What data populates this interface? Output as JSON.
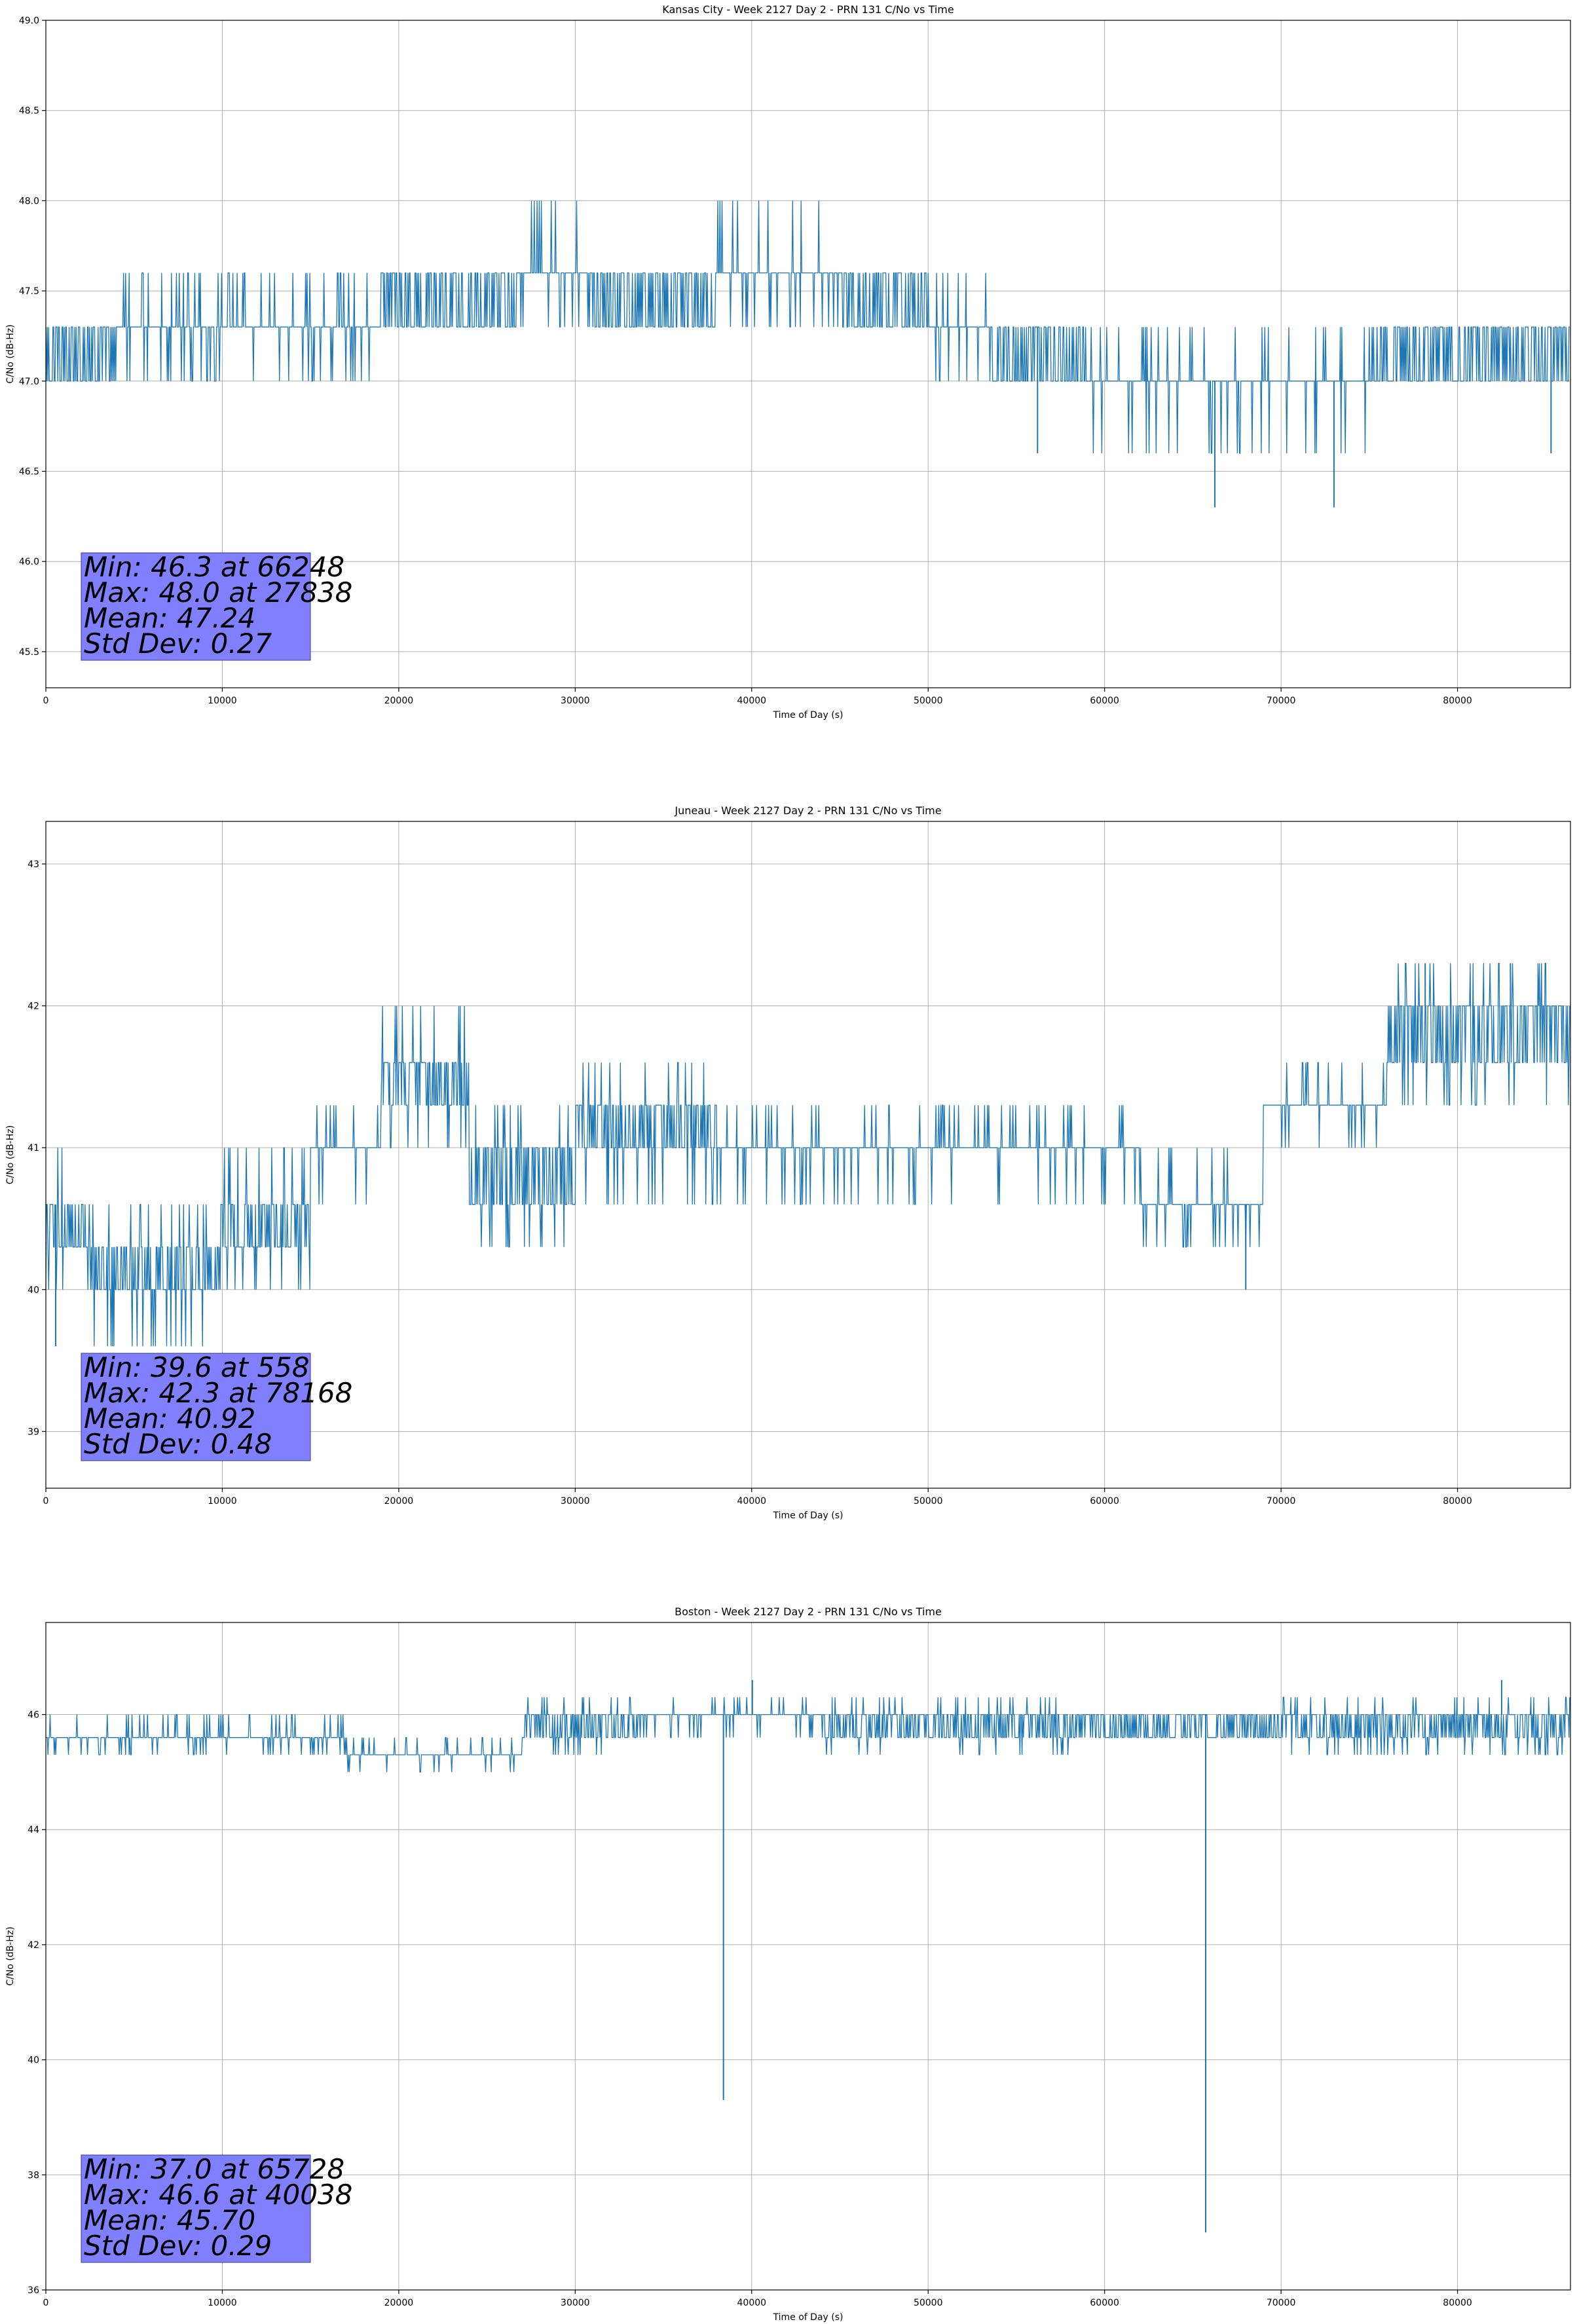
{
  "chart_data": [
    {
      "type": "line",
      "title": "Kansas City - Week 2127 Day 2 - PRN 131 C/No vs Time",
      "xlabel": "Time of Day (s)",
      "ylabel": "C/No (dB-Hz)",
      "xlim": [
        0,
        86400
      ],
      "ylim": [
        45.3,
        49.0
      ],
      "x_ticks": [
        0,
        10000,
        20000,
        30000,
        40000,
        50000,
        60000,
        70000,
        80000
      ],
      "x_tick_labels": [
        "0",
        "10000",
        "20000",
        "30000",
        "40000",
        "50000",
        "60000",
        "70000",
        "80000"
      ],
      "y_ticks": [
        45.5,
        46.0,
        46.5,
        47.0,
        47.5,
        48.0,
        48.5,
        49.0
      ],
      "y_tick_labels": [
        "45.5",
        "46.0",
        "46.5",
        "47.0",
        "47.5",
        "48.0",
        "48.5",
        "49.0"
      ],
      "grid": true,
      "color": "#1f77b4",
      "levels": [
        46.3,
        46.6,
        47.0,
        47.3,
        47.6,
        48.0
      ],
      "segments": [
        {
          "x0": 0,
          "x1": 4000,
          "levels": [
            47.0,
            47.3
          ]
        },
        {
          "x0": 4000,
          "x1": 8000,
          "levels": [
            47.0,
            47.3,
            47.6
          ]
        },
        {
          "x0": 8000,
          "x1": 11000,
          "levels": [
            47.0,
            47.3,
            47.6
          ]
        },
        {
          "x0": 11000,
          "x1": 19000,
          "levels": [
            47.0,
            47.3,
            47.6
          ]
        },
        {
          "x0": 19000,
          "x1": 27000,
          "levels": [
            47.3,
            47.6
          ]
        },
        {
          "x0": 27000,
          "x1": 31000,
          "levels": [
            47.3,
            47.6,
            48.0
          ]
        },
        {
          "x0": 31000,
          "x1": 38000,
          "levels": [
            47.3,
            47.6
          ]
        },
        {
          "x0": 38000,
          "x1": 45000,
          "levels": [
            47.3,
            47.6,
            48.0
          ]
        },
        {
          "x0": 45000,
          "x1": 50000,
          "levels": [
            47.3,
            47.6
          ]
        },
        {
          "x0": 50000,
          "x1": 53500,
          "levels": [
            47.0,
            47.3,
            47.6
          ]
        },
        {
          "x0": 53500,
          "x1": 59000,
          "levels": [
            47.0,
            47.3
          ]
        },
        {
          "x0": 59000,
          "x1": 69000,
          "levels": [
            46.6,
            47.0,
            47.3
          ]
        },
        {
          "x0": 69000,
          "x1": 75000,
          "levels": [
            46.6,
            47.0,
            47.3
          ]
        },
        {
          "x0": 75000,
          "x1": 86400,
          "levels": [
            47.0,
            47.3
          ]
        }
      ],
      "spikes": [
        {
          "x": 66248,
          "y": 46.3
        },
        {
          "x": 73000,
          "y": 46.3
        },
        {
          "x": 56200,
          "y": 46.6
        },
        {
          "x": 85300,
          "y": 46.6
        }
      ],
      "stats": {
        "min_line": "Min: 46.3 at 66248",
        "max_line": "Max: 48.0 at 27838",
        "mean_line": "Mean: 47.24",
        "std_line": "Std Dev: 0.27"
      }
    },
    {
      "type": "line",
      "title": "Juneau - Week 2127 Day 2 - PRN 131 C/No vs Time",
      "xlabel": "Time of Day (s)",
      "ylabel": "C/No (dB-Hz)",
      "xlim": [
        0,
        86400
      ],
      "ylim": [
        38.6,
        43.3
      ],
      "x_ticks": [
        0,
        10000,
        20000,
        30000,
        40000,
        50000,
        60000,
        70000,
        80000
      ],
      "x_tick_labels": [
        "0",
        "10000",
        "20000",
        "30000",
        "40000",
        "50000",
        "60000",
        "70000",
        "80000"
      ],
      "y_ticks": [
        39,
        40,
        41,
        42,
        43
      ],
      "y_tick_labels": [
        "39",
        "40",
        "41",
        "42",
        "43"
      ],
      "grid": true,
      "color": "#1f77b4",
      "levels": [
        39.6,
        40.0,
        40.3,
        40.6,
        41.0,
        41.3,
        41.6,
        42.0,
        42.3
      ],
      "segments": [
        {
          "x0": 0,
          "x1": 2500,
          "levels": [
            40.0,
            40.3,
            40.6,
            41.0
          ]
        },
        {
          "x0": 2500,
          "x1": 10000,
          "levels": [
            39.6,
            40.0,
            40.3,
            40.6
          ]
        },
        {
          "x0": 10000,
          "x1": 15000,
          "levels": [
            40.0,
            40.3,
            40.6,
            41.0
          ]
        },
        {
          "x0": 15000,
          "x1": 19000,
          "levels": [
            40.6,
            41.0,
            41.3
          ]
        },
        {
          "x0": 19000,
          "x1": 24000,
          "levels": [
            41.0,
            41.3,
            41.6,
            42.0
          ]
        },
        {
          "x0": 24000,
          "x1": 30000,
          "levels": [
            40.3,
            40.6,
            41.0,
            41.3
          ]
        },
        {
          "x0": 30000,
          "x1": 38000,
          "levels": [
            40.6,
            41.0,
            41.3,
            41.6
          ]
        },
        {
          "x0": 38000,
          "x1": 52000,
          "levels": [
            40.6,
            41.0,
            41.3
          ]
        },
        {
          "x0": 52000,
          "x1": 62000,
          "levels": [
            40.6,
            41.0,
            41.3
          ]
        },
        {
          "x0": 62000,
          "x1": 69000,
          "levels": [
            40.3,
            40.6,
            41.0
          ]
        },
        {
          "x0": 69000,
          "x1": 76000,
          "levels": [
            41.0,
            41.3,
            41.6
          ]
        },
        {
          "x0": 76000,
          "x1": 86400,
          "levels": [
            41.3,
            41.6,
            42.0,
            42.3
          ]
        }
      ],
      "spikes": [
        {
          "x": 558,
          "y": 39.6
        },
        {
          "x": 68000,
          "y": 40.0
        },
        {
          "x": 78168,
          "y": 42.3
        },
        {
          "x": 83000,
          "y": 42.3
        }
      ],
      "stats": {
        "min_line": "Min: 39.6 at 558",
        "max_line": "Max: 42.3 at 78168",
        "mean_line": "Mean: 40.92",
        "std_line": "Std Dev: 0.48"
      }
    },
    {
      "type": "line",
      "title": "Boston - Week 2127 Day 2 - PRN 131 C/No vs Time",
      "xlabel": "Time of Day (s)",
      "ylabel": "C/No (dB-Hz)",
      "xlim": [
        0,
        86400
      ],
      "ylim": [
        36.0,
        47.6
      ],
      "x_ticks": [
        0,
        10000,
        20000,
        30000,
        40000,
        50000,
        60000,
        70000,
        80000
      ],
      "x_tick_labels": [
        "0",
        "10000",
        "20000",
        "30000",
        "40000",
        "50000",
        "60000",
        "70000",
        "80000"
      ],
      "y_ticks": [
        36,
        38,
        40,
        42,
        44,
        46
      ],
      "y_tick_labels": [
        "36",
        "38",
        "40",
        "42",
        "44",
        "46"
      ],
      "grid": true,
      "color": "#1f77b4",
      "levels": [
        45.0,
        45.3,
        45.6,
        46.0,
        46.3,
        46.6
      ],
      "segments": [
        {
          "x0": 0,
          "x1": 6000,
          "levels": [
            45.3,
            45.6,
            46.0
          ]
        },
        {
          "x0": 6000,
          "x1": 17000,
          "levels": [
            45.3,
            45.6,
            46.0
          ]
        },
        {
          "x0": 17000,
          "x1": 27000,
          "levels": [
            45.0,
            45.3,
            45.6
          ]
        },
        {
          "x0": 27000,
          "x1": 34000,
          "levels": [
            45.3,
            45.6,
            46.0,
            46.3
          ]
        },
        {
          "x0": 34000,
          "x1": 44000,
          "levels": [
            45.6,
            46.0,
            46.3
          ]
        },
        {
          "x0": 44000,
          "x1": 58000,
          "levels": [
            45.3,
            45.6,
            46.0,
            46.3
          ]
        },
        {
          "x0": 58000,
          "x1": 70000,
          "levels": [
            45.6,
            46.0
          ]
        },
        {
          "x0": 70000,
          "x1": 86400,
          "levels": [
            45.3,
            45.6,
            46.0,
            46.3
          ]
        }
      ],
      "spikes": [
        {
          "x": 38400,
          "y": 39.3
        },
        {
          "x": 65728,
          "y": 37.0
        },
        {
          "x": 40038,
          "y": 46.6
        },
        {
          "x": 82500,
          "y": 46.6
        }
      ],
      "stats": {
        "min_line": "Min: 37.0 at 65728",
        "max_line": "Max: 46.6 at 40038",
        "mean_line": "Mean: 45.70",
        "std_line": "Std Dev: 0.29"
      }
    }
  ]
}
